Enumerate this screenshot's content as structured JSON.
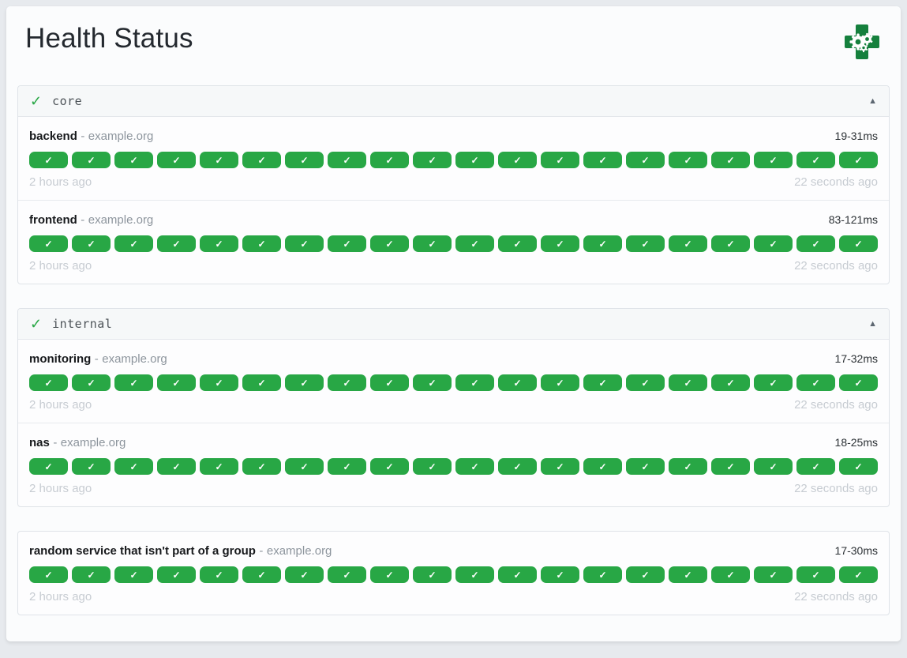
{
  "page": {
    "title": "Health Status"
  },
  "icons": {
    "logo": "health-cross-gears-logo",
    "healthy_check": "✓",
    "collapse_arrow": "▲",
    "badge_success": "✓"
  },
  "labels": {
    "separator": "-"
  },
  "colors": {
    "success_green": "#28a745",
    "logo_green": "#15803d",
    "page_background": "#e7eaee",
    "card_background": "#fbfcfd"
  },
  "groups": [
    {
      "name": "core",
      "services": [
        {
          "name": "backend",
          "hostname": "example.org",
          "response_time": "19-31ms",
          "oldest_result": "2 hours ago",
          "newest_result": "22 seconds ago",
          "results": 20
        },
        {
          "name": "frontend",
          "hostname": "example.org",
          "response_time": "83-121ms",
          "oldest_result": "2 hours ago",
          "newest_result": "22 seconds ago",
          "results": 20
        }
      ]
    },
    {
      "name": "internal",
      "services": [
        {
          "name": "monitoring",
          "hostname": "example.org",
          "response_time": "17-32ms",
          "oldest_result": "2 hours ago",
          "newest_result": "22 seconds ago",
          "results": 20
        },
        {
          "name": "nas",
          "hostname": "example.org",
          "response_time": "18-25ms",
          "oldest_result": "2 hours ago",
          "newest_result": "22 seconds ago",
          "results": 20
        }
      ]
    },
    {
      "name": null,
      "services": [
        {
          "name": "random service that isn't part of a group",
          "hostname": "example.org",
          "response_time": "17-30ms",
          "oldest_result": "2 hours ago",
          "newest_result": "22 seconds ago",
          "results": 20
        }
      ]
    }
  ]
}
